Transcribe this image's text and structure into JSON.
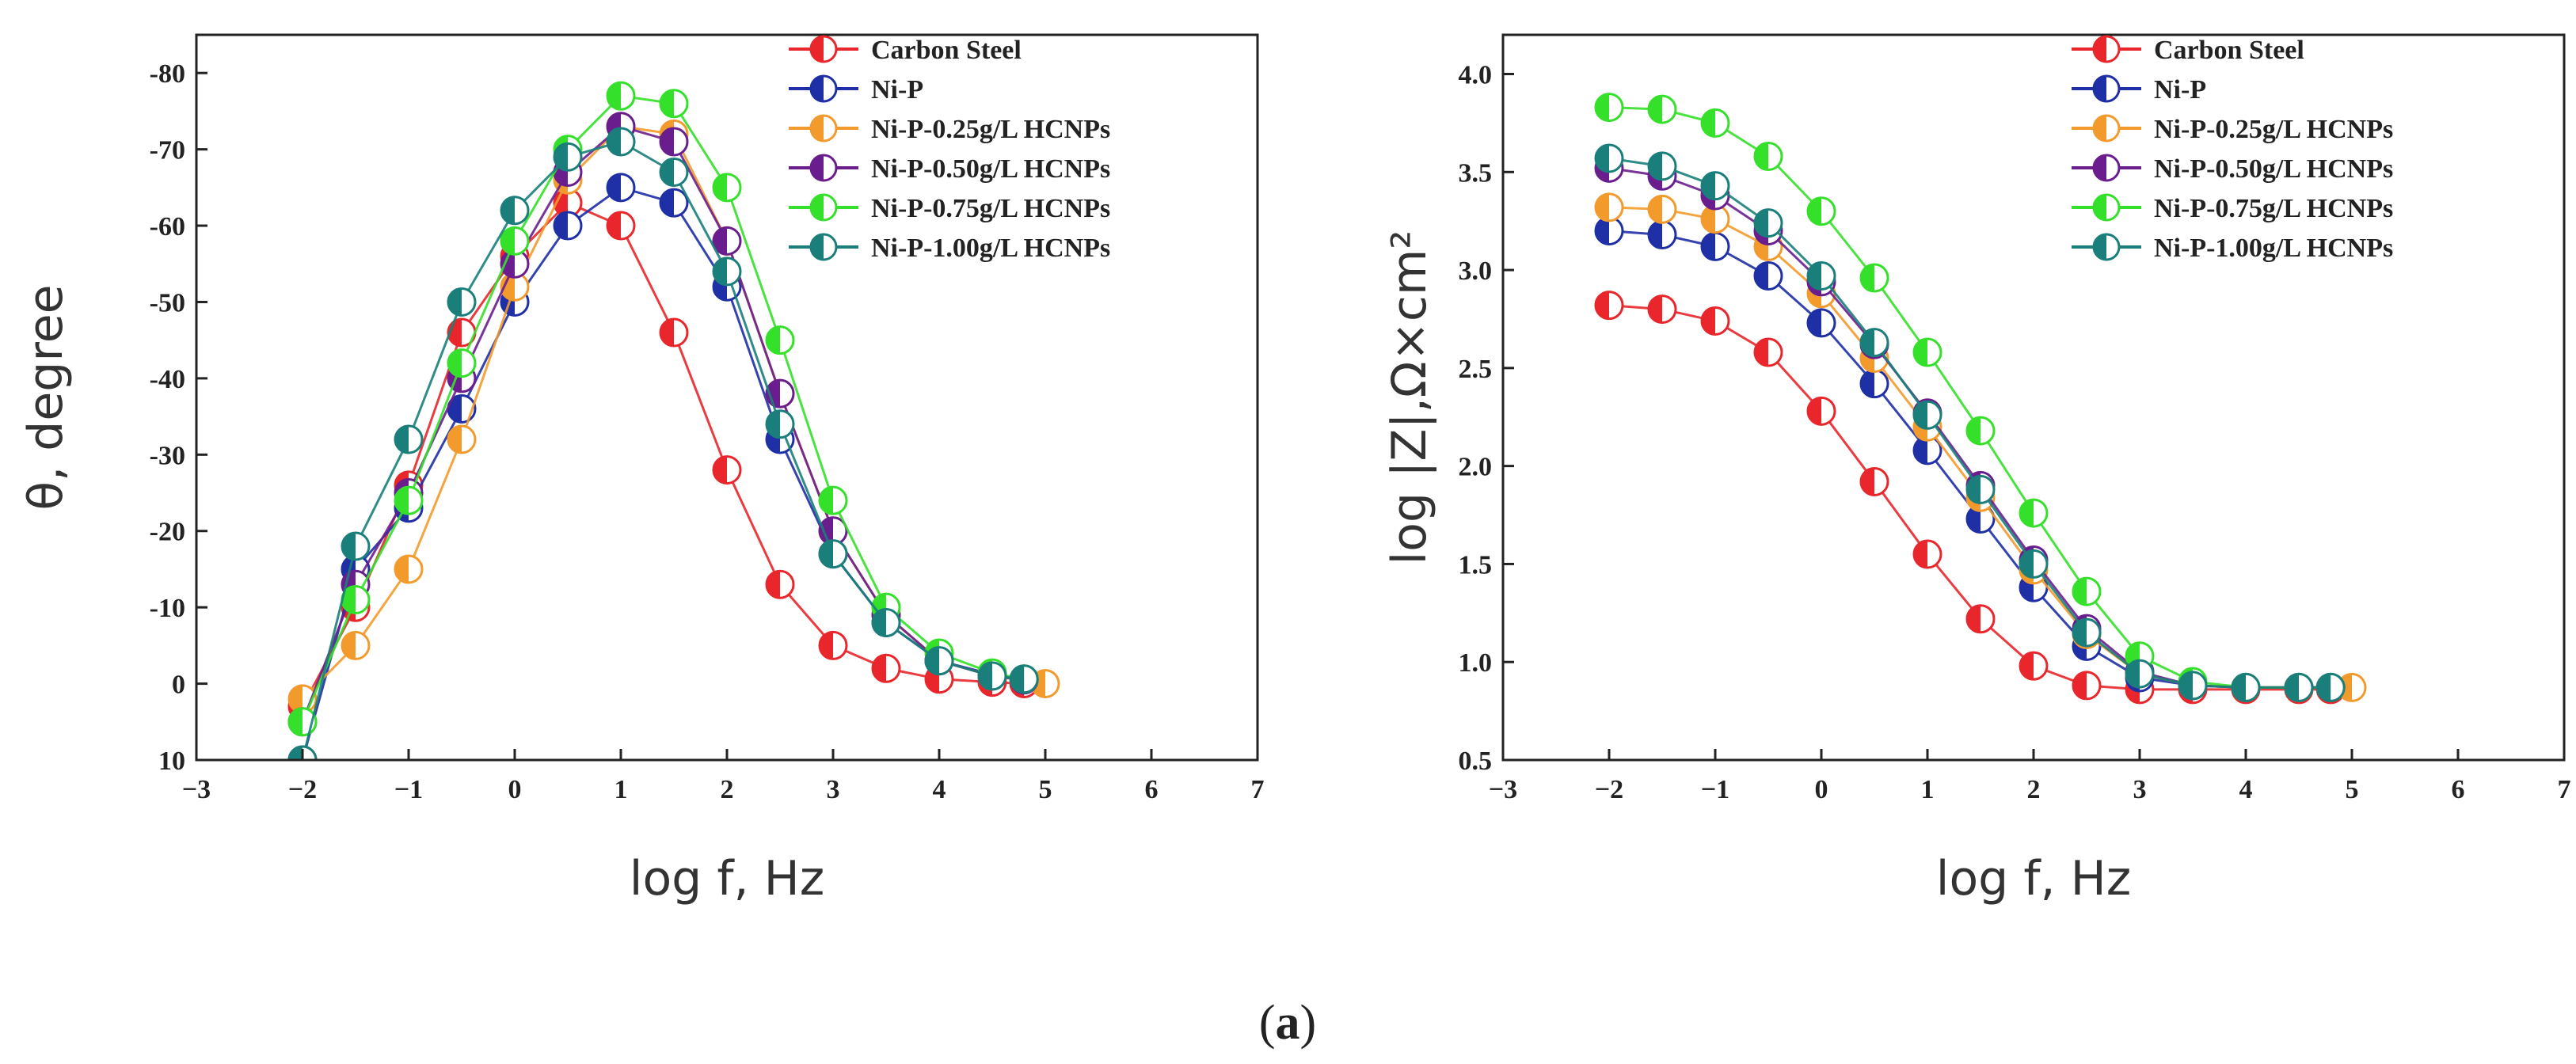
{
  "caption": {
    "open": "(",
    "label": "a",
    "close": ")"
  },
  "series_styles": [
    {
      "name": "Carbon Steel",
      "color": "#e8262b"
    },
    {
      "name": "Ni-P",
      "color": "#1f2fa5"
    },
    {
      "name": "Ni-P-0.25g/L HCNPs",
      "color": "#f39a2c"
    },
    {
      "name": "Ni-P-0.50g/L HCNPs",
      "color": "#6a1e8e"
    },
    {
      "name": "Ni-P-0.75g/L HCNPs",
      "color": "#35e02a"
    },
    {
      "name": "Ni-P-1.00g/L HCNPs",
      "color": "#1a7f7a"
    }
  ],
  "chart_data": [
    {
      "type": "scatter",
      "title": "",
      "xlabel": "log f, Hz",
      "ylabel": "θ, degree",
      "xlim": [
        -3,
        7
      ],
      "ylim": [
        10,
        -85
      ],
      "xticks": [
        -3,
        -2,
        -1,
        0,
        1,
        2,
        3,
        4,
        5,
        6,
        7
      ],
      "xtick_labels": [
        "−3",
        "−2",
        "−1",
        "0",
        "1",
        "2",
        "3",
        "4",
        "5",
        "6",
        "7"
      ],
      "yticks": [
        10,
        0,
        -10,
        -20,
        -30,
        -40,
        -50,
        -60,
        -70,
        -80
      ],
      "ytick_labels": [
        "10",
        "0",
        "-10",
        "-20",
        "-30",
        "-40",
        "-50",
        "-60",
        "-70",
        "-80"
      ],
      "legend_position": "top-right",
      "series": [
        {
          "name": "Carbon Steel",
          "x": [
            -2,
            -1.5,
            -1,
            -0.5,
            0,
            0.5,
            1,
            1.5,
            2,
            2.5,
            3,
            3.5,
            4,
            4.5,
            4.8
          ],
          "values": [
            3,
            -10,
            -26,
            -46,
            -56,
            -63,
            -60,
            -46,
            -28,
            -13,
            -5,
            -2,
            -0.6,
            -0.2,
            0
          ]
        },
        {
          "name": "Ni-P",
          "x": [
            -2,
            -1.5,
            -1,
            -0.5,
            0,
            0.5,
            1,
            1.5,
            2,
            2.5,
            3,
            3.5,
            4,
            4.5,
            4.8
          ],
          "values": [
            10,
            -15,
            -23,
            -36,
            -50,
            -60,
            -65,
            -63,
            -52,
            -32,
            -17,
            -8,
            -3,
            -1.2,
            -0.6
          ]
        },
        {
          "name": "Ni-P-0.25g/L HCNPs",
          "x": [
            -2,
            -1.5,
            -1,
            -0.5,
            0,
            0.5,
            1,
            1.5,
            2,
            2.5,
            3,
            3.5,
            4,
            4.5,
            5
          ],
          "values": [
            2,
            -5,
            -15,
            -32,
            -52,
            -66,
            -73,
            -72,
            -58,
            -38,
            -20,
            -9,
            -3,
            -1,
            0
          ]
        },
        {
          "name": "Ni-P-0.50g/L HCNPs",
          "x": [
            -2,
            -1.5,
            -1,
            -0.5,
            0,
            0.5,
            1,
            1.5,
            2,
            2.5,
            3,
            3.5,
            4,
            4.5,
            4.8
          ],
          "values": [
            5,
            -13,
            -25,
            -40,
            -55,
            -67,
            -73,
            -71,
            -58,
            -38,
            -20,
            -9,
            -3,
            -1,
            -0.5
          ]
        },
        {
          "name": "Ni-P-0.75g/L HCNPs",
          "x": [
            -2,
            -1.5,
            -1,
            -0.5,
            0,
            0.5,
            1,
            1.5,
            2,
            2.5,
            3,
            3.5,
            4,
            4.5,
            4.8
          ],
          "values": [
            5,
            -11,
            -24,
            -42,
            -58,
            -70,
            -77,
            -76,
            -65,
            -45,
            -24,
            -10,
            -4,
            -1.4,
            -0.6
          ]
        },
        {
          "name": "Ni-P-1.00g/L HCNPs",
          "x": [
            -2,
            -1.5,
            -1,
            -0.5,
            0,
            0.5,
            1,
            1.5,
            2,
            2.5,
            3,
            3.5,
            4,
            4.5,
            4.8
          ],
          "values": [
            10,
            -18,
            -32,
            -50,
            -62,
            -69,
            -71,
            -67,
            -54,
            -34,
            -17,
            -8,
            -3,
            -1,
            -0.6
          ]
        }
      ]
    },
    {
      "type": "scatter",
      "title": "",
      "xlabel": "log f, Hz",
      "ylabel": "log |Z|,Ω×cm²",
      "xlim": [
        -3,
        7
      ],
      "ylim": [
        0.5,
        4.2
      ],
      "xticks": [
        -3,
        -2,
        -1,
        0,
        1,
        2,
        3,
        4,
        5,
        6,
        7
      ],
      "xtick_labels": [
        "−3",
        "−2",
        "−1",
        "0",
        "1",
        "2",
        "3",
        "4",
        "5",
        "6",
        "7"
      ],
      "yticks": [
        0.5,
        1.0,
        1.5,
        2.0,
        2.5,
        3.0,
        3.5,
        4.0
      ],
      "ytick_labels": [
        "0.5",
        "1.0",
        "1.5",
        "2.0",
        "2.5",
        "3.0",
        "3.5",
        "4.0"
      ],
      "legend_position": "top-right",
      "series": [
        {
          "name": "Carbon Steel",
          "x": [
            -2,
            -1.5,
            -1,
            -0.5,
            0,
            0.5,
            1,
            1.5,
            2,
            2.5,
            3,
            3.5,
            4,
            4.5,
            4.8
          ],
          "values": [
            2.82,
            2.8,
            2.74,
            2.58,
            2.28,
            1.92,
            1.55,
            1.22,
            0.98,
            0.88,
            0.86,
            0.86,
            0.86,
            0.86,
            0.86
          ]
        },
        {
          "name": "Ni-P",
          "x": [
            -2,
            -1.5,
            -1,
            -0.5,
            0,
            0.5,
            1,
            1.5,
            2,
            2.5,
            3,
            3.5,
            4,
            4.5,
            4.8
          ],
          "values": [
            3.2,
            3.18,
            3.12,
            2.97,
            2.73,
            2.42,
            2.08,
            1.73,
            1.38,
            1.08,
            0.92,
            0.88,
            0.87,
            0.87,
            0.87
          ]
        },
        {
          "name": "Ni-P-0.25g/L HCNPs",
          "x": [
            -2,
            -1.5,
            -1,
            -0.5,
            0,
            0.5,
            1,
            1.5,
            2,
            2.5,
            3,
            3.5,
            4,
            4.5,
            5
          ],
          "values": [
            3.32,
            3.31,
            3.26,
            3.12,
            2.88,
            2.55,
            2.2,
            1.84,
            1.47,
            1.14,
            0.94,
            0.88,
            0.87,
            0.87,
            0.87
          ]
        },
        {
          "name": "Ni-P-0.50g/L HCNPs",
          "x": [
            -2,
            -1.5,
            -1,
            -0.5,
            0,
            0.5,
            1,
            1.5,
            2,
            2.5,
            3,
            3.5,
            4,
            4.5,
            4.8
          ],
          "values": [
            3.52,
            3.48,
            3.38,
            3.2,
            2.94,
            2.62,
            2.27,
            1.9,
            1.52,
            1.17,
            0.95,
            0.88,
            0.87,
            0.87,
            0.87
          ]
        },
        {
          "name": "Ni-P-0.75g/L HCNPs",
          "x": [
            -2,
            -1.5,
            -1,
            -0.5,
            0,
            0.5,
            1,
            1.5,
            2,
            2.5,
            3,
            3.5,
            4,
            4.5,
            4.8
          ],
          "values": [
            3.83,
            3.82,
            3.75,
            3.58,
            3.3,
            2.96,
            2.58,
            2.18,
            1.76,
            1.36,
            1.03,
            0.9,
            0.87,
            0.87,
            0.87
          ]
        },
        {
          "name": "Ni-P-1.00g/L HCNPs",
          "x": [
            -2,
            -1.5,
            -1,
            -0.5,
            0,
            0.5,
            1,
            1.5,
            2,
            2.5,
            3,
            3.5,
            4,
            4.5,
            4.8
          ],
          "values": [
            3.57,
            3.53,
            3.43,
            3.24,
            2.97,
            2.63,
            2.26,
            1.88,
            1.5,
            1.15,
            0.94,
            0.88,
            0.87,
            0.87,
            0.87
          ]
        }
      ]
    }
  ]
}
